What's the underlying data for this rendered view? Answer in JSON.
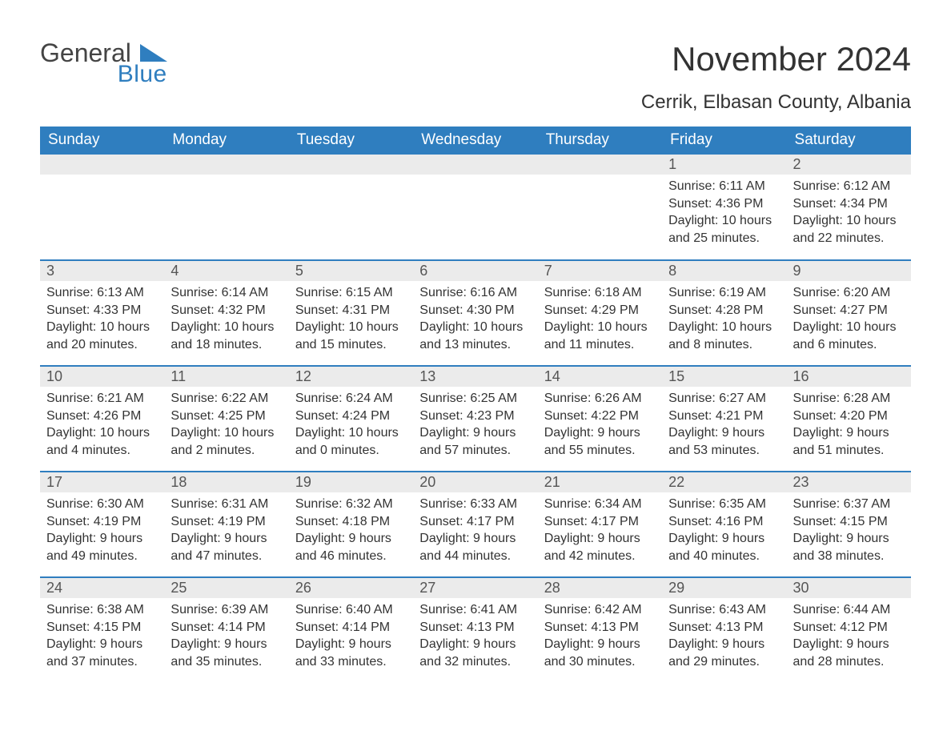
{
  "logo": {
    "word1": "General",
    "word2": "Blue"
  },
  "title": "November 2024",
  "subtitle": "Cerrik, Elbasan County, Albania",
  "colors": {
    "header_bg": "#2f7ebf",
    "header_text": "#ffffff",
    "daynum_bg": "#ebebeb",
    "row_divider": "#2f7ebf",
    "body_text": "#333333",
    "page_bg": "#ffffff",
    "logo_gray": "#444444",
    "logo_blue": "#2f7ebf"
  },
  "fontsizes": {
    "title": 42,
    "subtitle": 24,
    "weekday": 19,
    "daynum": 18,
    "body": 16
  },
  "weekdays": [
    "Sunday",
    "Monday",
    "Tuesday",
    "Wednesday",
    "Thursday",
    "Friday",
    "Saturday"
  ],
  "label_prefixes": {
    "sunrise": "Sunrise: ",
    "sunset": "Sunset: ",
    "daylight": "Daylight: "
  },
  "weeks": [
    [
      null,
      null,
      null,
      null,
      null,
      {
        "n": "1",
        "sunrise": "6:11 AM",
        "sunset": "4:36 PM",
        "daylight": "10 hours and 25 minutes."
      },
      {
        "n": "2",
        "sunrise": "6:12 AM",
        "sunset": "4:34 PM",
        "daylight": "10 hours and 22 minutes."
      }
    ],
    [
      {
        "n": "3",
        "sunrise": "6:13 AM",
        "sunset": "4:33 PM",
        "daylight": "10 hours and 20 minutes."
      },
      {
        "n": "4",
        "sunrise": "6:14 AM",
        "sunset": "4:32 PM",
        "daylight": "10 hours and 18 minutes."
      },
      {
        "n": "5",
        "sunrise": "6:15 AM",
        "sunset": "4:31 PM",
        "daylight": "10 hours and 15 minutes."
      },
      {
        "n": "6",
        "sunrise": "6:16 AM",
        "sunset": "4:30 PM",
        "daylight": "10 hours and 13 minutes."
      },
      {
        "n": "7",
        "sunrise": "6:18 AM",
        "sunset": "4:29 PM",
        "daylight": "10 hours and 11 minutes."
      },
      {
        "n": "8",
        "sunrise": "6:19 AM",
        "sunset": "4:28 PM",
        "daylight": "10 hours and 8 minutes."
      },
      {
        "n": "9",
        "sunrise": "6:20 AM",
        "sunset": "4:27 PM",
        "daylight": "10 hours and 6 minutes."
      }
    ],
    [
      {
        "n": "10",
        "sunrise": "6:21 AM",
        "sunset": "4:26 PM",
        "daylight": "10 hours and 4 minutes."
      },
      {
        "n": "11",
        "sunrise": "6:22 AM",
        "sunset": "4:25 PM",
        "daylight": "10 hours and 2 minutes."
      },
      {
        "n": "12",
        "sunrise": "6:24 AM",
        "sunset": "4:24 PM",
        "daylight": "10 hours and 0 minutes."
      },
      {
        "n": "13",
        "sunrise": "6:25 AM",
        "sunset": "4:23 PM",
        "daylight": "9 hours and 57 minutes."
      },
      {
        "n": "14",
        "sunrise": "6:26 AM",
        "sunset": "4:22 PM",
        "daylight": "9 hours and 55 minutes."
      },
      {
        "n": "15",
        "sunrise": "6:27 AM",
        "sunset": "4:21 PM",
        "daylight": "9 hours and 53 minutes."
      },
      {
        "n": "16",
        "sunrise": "6:28 AM",
        "sunset": "4:20 PM",
        "daylight": "9 hours and 51 minutes."
      }
    ],
    [
      {
        "n": "17",
        "sunrise": "6:30 AM",
        "sunset": "4:19 PM",
        "daylight": "9 hours and 49 minutes."
      },
      {
        "n": "18",
        "sunrise": "6:31 AM",
        "sunset": "4:19 PM",
        "daylight": "9 hours and 47 minutes."
      },
      {
        "n": "19",
        "sunrise": "6:32 AM",
        "sunset": "4:18 PM",
        "daylight": "9 hours and 46 minutes."
      },
      {
        "n": "20",
        "sunrise": "6:33 AM",
        "sunset": "4:17 PM",
        "daylight": "9 hours and 44 minutes."
      },
      {
        "n": "21",
        "sunrise": "6:34 AM",
        "sunset": "4:17 PM",
        "daylight": "9 hours and 42 minutes."
      },
      {
        "n": "22",
        "sunrise": "6:35 AM",
        "sunset": "4:16 PM",
        "daylight": "9 hours and 40 minutes."
      },
      {
        "n": "23",
        "sunrise": "6:37 AM",
        "sunset": "4:15 PM",
        "daylight": "9 hours and 38 minutes."
      }
    ],
    [
      {
        "n": "24",
        "sunrise": "6:38 AM",
        "sunset": "4:15 PM",
        "daylight": "9 hours and 37 minutes."
      },
      {
        "n": "25",
        "sunrise": "6:39 AM",
        "sunset": "4:14 PM",
        "daylight": "9 hours and 35 minutes."
      },
      {
        "n": "26",
        "sunrise": "6:40 AM",
        "sunset": "4:14 PM",
        "daylight": "9 hours and 33 minutes."
      },
      {
        "n": "27",
        "sunrise": "6:41 AM",
        "sunset": "4:13 PM",
        "daylight": "9 hours and 32 minutes."
      },
      {
        "n": "28",
        "sunrise": "6:42 AM",
        "sunset": "4:13 PM",
        "daylight": "9 hours and 30 minutes."
      },
      {
        "n": "29",
        "sunrise": "6:43 AM",
        "sunset": "4:13 PM",
        "daylight": "9 hours and 29 minutes."
      },
      {
        "n": "30",
        "sunrise": "6:44 AM",
        "sunset": "4:12 PM",
        "daylight": "9 hours and 28 minutes."
      }
    ]
  ]
}
